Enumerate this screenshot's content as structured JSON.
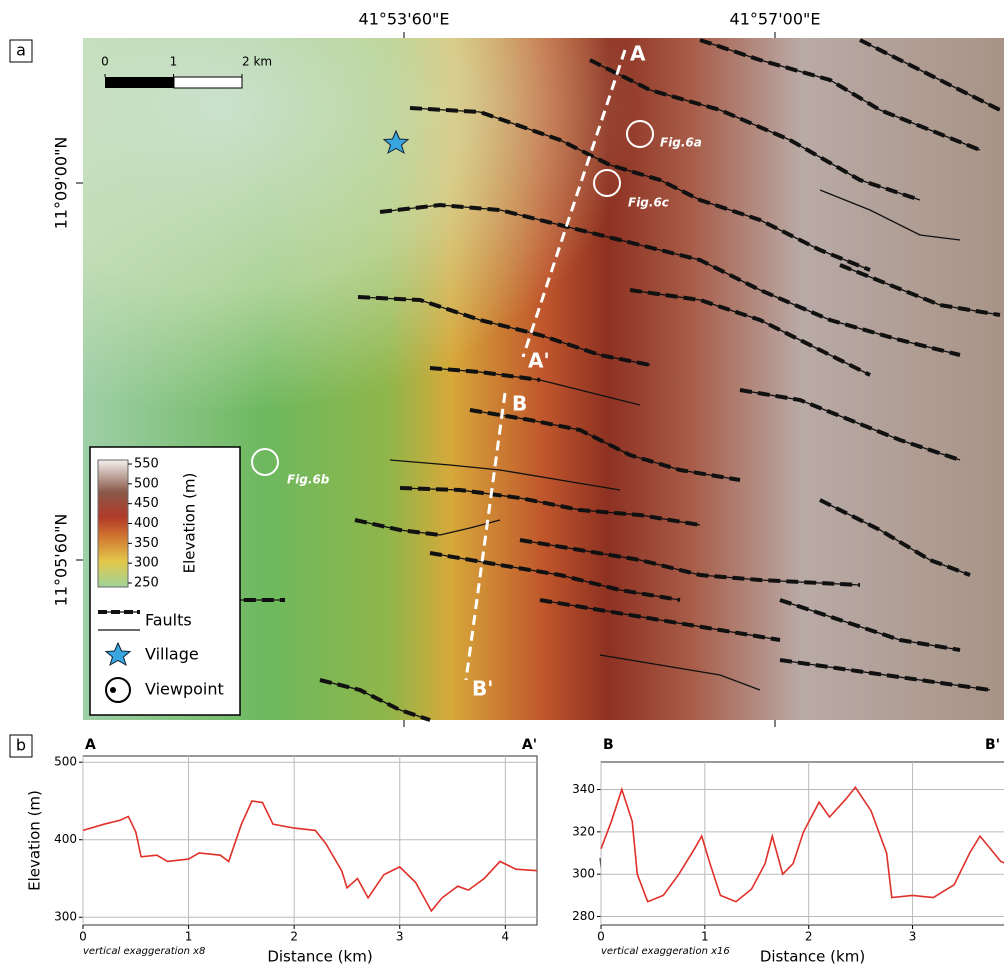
{
  "map": {
    "panel_label": "a",
    "lon_labels": [
      "41°53'60\"E",
      "41°57'00\"E"
    ],
    "lat_labels": [
      "11°09'00\"N",
      "11°05'60\"N"
    ],
    "scale_bar": {
      "ticks": [
        0,
        1,
        {
          "value": 2,
          "label": "2 km"
        }
      ]
    },
    "legend": {
      "title": "Elevation (m)",
      "colorbar_ticks": [
        550,
        500,
        450,
        400,
        350,
        300,
        250
      ],
      "faults": "Faults",
      "village": "Village",
      "viewpoint": "Viewpoint"
    },
    "profile_labels": [
      "A",
      "A'",
      "B",
      "B'"
    ],
    "viewpoints": [
      "Fig.6a",
      "Fig.6c",
      "Fig.6b"
    ]
  },
  "profiles": {
    "panel_label": "b"
  },
  "chart_data": [
    {
      "type": "line",
      "start_label": "A",
      "end_label": "A'",
      "xlabel": "Distance (km)",
      "ylabel": "Elevation (m)",
      "note": "vertical exaggeration x8",
      "x": [
        0,
        0.2,
        0.35,
        0.43,
        0.5,
        0.55,
        0.7,
        0.8,
        1.0,
        1.1,
        1.3,
        1.38,
        1.5,
        1.6,
        1.7,
        1.8,
        2.0,
        2.2,
        2.3,
        2.45,
        2.5,
        2.6,
        2.7,
        2.85,
        3.0,
        3.15,
        3.3,
        3.4,
        3.55,
        3.65,
        3.8,
        3.95,
        4.1,
        4.3
      ],
      "values": [
        412,
        420,
        425,
        430,
        410,
        378,
        380,
        372,
        375,
        383,
        380,
        372,
        420,
        450,
        448,
        420,
        415,
        412,
        395,
        360,
        338,
        350,
        325,
        355,
        365,
        345,
        308,
        325,
        340,
        335,
        350,
        372,
        362,
        360
      ],
      "color": "#e0302a",
      "xlim": [
        0,
        4.3
      ],
      "ylim": [
        290,
        508
      ],
      "xticks": [
        0,
        1,
        2,
        3,
        4
      ],
      "yticks": [
        300,
        400,
        500
      ],
      "grid": true
    },
    {
      "type": "line",
      "start_label": "B",
      "end_label": "B'",
      "xlabel": "Distance (km)",
      "note": "vertical exaggeration x16",
      "x": [
        0,
        0.1,
        0.2,
        0.3,
        0.35,
        0.45,
        0.6,
        0.75,
        0.9,
        0.97,
        1.05,
        1.15,
        1.3,
        1.45,
        1.58,
        1.65,
        1.75,
        1.85,
        1.95,
        2.1,
        2.2,
        2.35,
        2.45,
        2.6,
        2.75,
        2.8,
        3.0,
        3.2,
        3.4,
        3.55,
        3.65,
        3.75,
        3.85,
        3.9
      ],
      "values": [
        312,
        325,
        340,
        325,
        300,
        287,
        290,
        300,
        312,
        318,
        305,
        290,
        287,
        293,
        305,
        318,
        300,
        305,
        320,
        334,
        327,
        335,
        341,
        330,
        310,
        289,
        290,
        289,
        295,
        310,
        318,
        312,
        306,
        305
      ],
      "color": "#e0302a",
      "xlim": [
        0,
        3.9
      ],
      "ylim": [
        276,
        353
      ],
      "xticks": [
        0,
        1,
        2,
        3
      ],
      "yticks": [
        280,
        300,
        320,
        340
      ],
      "grid": true
    }
  ]
}
